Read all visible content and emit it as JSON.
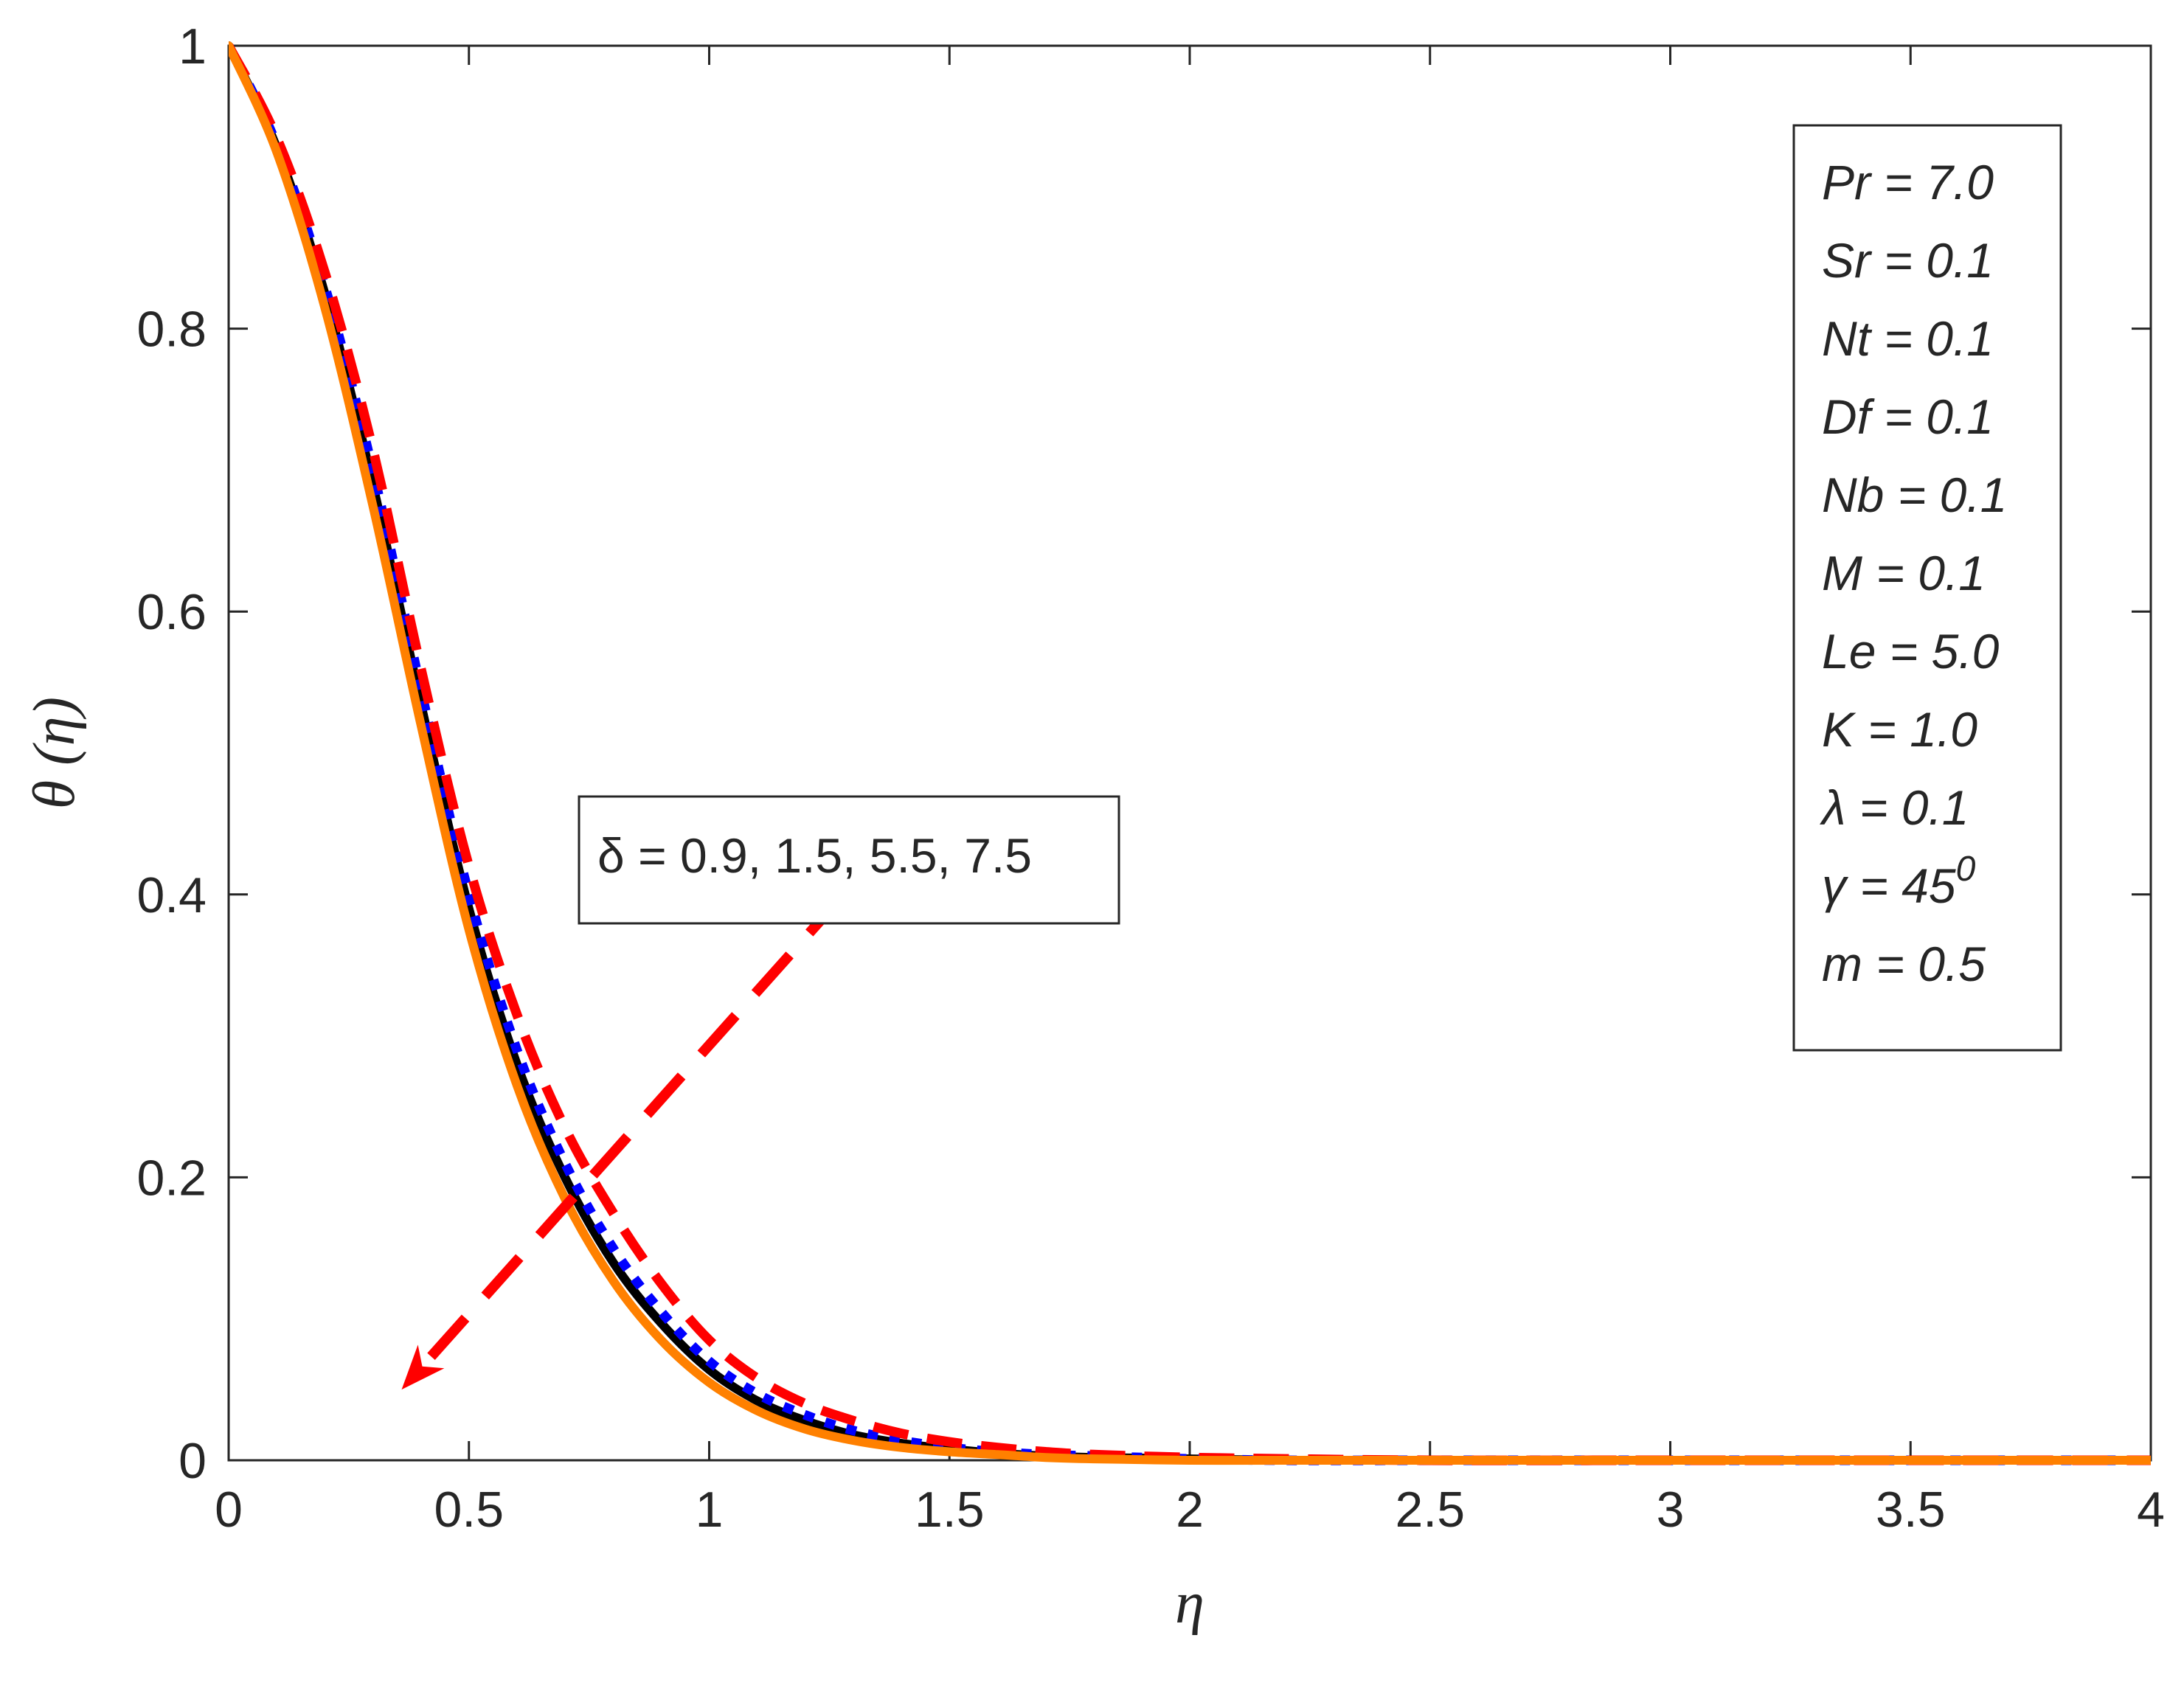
{
  "chart_data": {
    "type": "line",
    "xlabel": "η",
    "ylabel": "θ (η)",
    "xlim": [
      0,
      4
    ],
    "ylim": [
      0,
      1
    ],
    "x_ticks": [
      0,
      0.5,
      1,
      1.5,
      2,
      2.5,
      3,
      3.5,
      4
    ],
    "x_tick_labels": [
      "0",
      "0.5",
      "1",
      "1.5",
      "2",
      "2.5",
      "3",
      "3.5",
      "4"
    ],
    "y_ticks": [
      0,
      0.2,
      0.4,
      0.6,
      0.8,
      1
    ],
    "y_tick_labels": [
      "0",
      "0.2",
      "0.4",
      "0.6",
      "0.8",
      "1"
    ],
    "grid": false,
    "series": [
      {
        "color": "#ff0000",
        "style": "dashed",
        "x": [
          0,
          0.1,
          0.2,
          0.3,
          0.4,
          0.5,
          0.6,
          0.7,
          0.8,
          0.9,
          1.0,
          1.1,
          1.2,
          1.3,
          1.4,
          1.5,
          1.6,
          1.7,
          1.8,
          2.0,
          2.2,
          2.5,
          3.0,
          3.5,
          4.0
        ],
        "values": [
          1.0,
          0.935,
          0.84,
          0.715,
          0.56,
          0.42,
          0.315,
          0.235,
          0.175,
          0.125,
          0.085,
          0.058,
          0.04,
          0.028,
          0.019,
          0.013,
          0.009,
          0.006,
          0.004,
          0.002,
          0.001,
          0.0,
          0.0,
          0.0,
          0.0
        ]
      },
      {
        "color": "#0000ff",
        "style": "dotted",
        "x": [
          0,
          0.1,
          0.2,
          0.3,
          0.4,
          0.5,
          0.6,
          0.7,
          0.8,
          0.9,
          1.0,
          1.1,
          1.2,
          1.3,
          1.4,
          1.5,
          1.6,
          1.7,
          1.8,
          2.0,
          2.2,
          2.5,
          3.0,
          3.5,
          4.0
        ],
        "values": [
          1.0,
          0.93,
          0.83,
          0.7,
          0.545,
          0.4,
          0.29,
          0.21,
          0.15,
          0.105,
          0.07,
          0.047,
          0.032,
          0.021,
          0.014,
          0.009,
          0.006,
          0.004,
          0.003,
          0.001,
          0.0,
          0.0,
          0.0,
          0.0,
          0.0
        ]
      },
      {
        "color": "#000000",
        "style": "solid",
        "x": [
          0,
          0.1,
          0.2,
          0.3,
          0.4,
          0.5,
          0.6,
          0.7,
          0.8,
          0.9,
          1.0,
          1.1,
          1.2,
          1.3,
          1.4,
          1.5,
          1.6,
          1.7,
          1.8,
          2.0,
          2.2,
          2.5,
          3.0,
          3.5,
          4.0
        ],
        "values": [
          1.0,
          0.928,
          0.825,
          0.69,
          0.535,
          0.39,
          0.28,
          0.2,
          0.14,
          0.097,
          0.064,
          0.042,
          0.028,
          0.018,
          0.012,
          0.008,
          0.005,
          0.003,
          0.002,
          0.001,
          0.0,
          0.0,
          0.0,
          0.0,
          0.0
        ]
      },
      {
        "color": "#ff8000",
        "style": "solid",
        "x": [
          0,
          0.1,
          0.2,
          0.3,
          0.4,
          0.5,
          0.6,
          0.7,
          0.8,
          0.9,
          1.0,
          1.1,
          1.2,
          1.3,
          1.4,
          1.5,
          1.6,
          1.7,
          1.8,
          2.0,
          2.2,
          2.5,
          3.0,
          3.5,
          4.0
        ],
        "values": [
          1.0,
          0.925,
          0.815,
          0.675,
          0.52,
          0.375,
          0.265,
          0.185,
          0.127,
          0.085,
          0.055,
          0.035,
          0.022,
          0.014,
          0.009,
          0.006,
          0.004,
          0.002,
          0.001,
          0.0,
          0.0,
          0.0,
          0.0,
          0.0,
          0.0
        ]
      }
    ],
    "annotation": {
      "text": "δ = 0.9, 1.5, 5.5, 7.5",
      "arrow_color": "#ff0000",
      "arrow_from": [
        1.28,
        0.4
      ],
      "arrow_to": [
        0.36,
        0.05
      ]
    },
    "parameters_box": [
      {
        "text": "Pr = 7.0"
      },
      {
        "text": "Sr = 0.1"
      },
      {
        "text": "Nt = 0.1"
      },
      {
        "text": "Df = 0.1"
      },
      {
        "text": "Nb = 0.1"
      },
      {
        "text": "M = 0.1"
      },
      {
        "text": "Le = 5.0"
      },
      {
        "text": "K = 1.0"
      },
      {
        "text": "λ = 0.1"
      },
      {
        "text": "γ = 45",
        "sup": "0"
      },
      {
        "text": "m = 0.5"
      }
    ]
  }
}
